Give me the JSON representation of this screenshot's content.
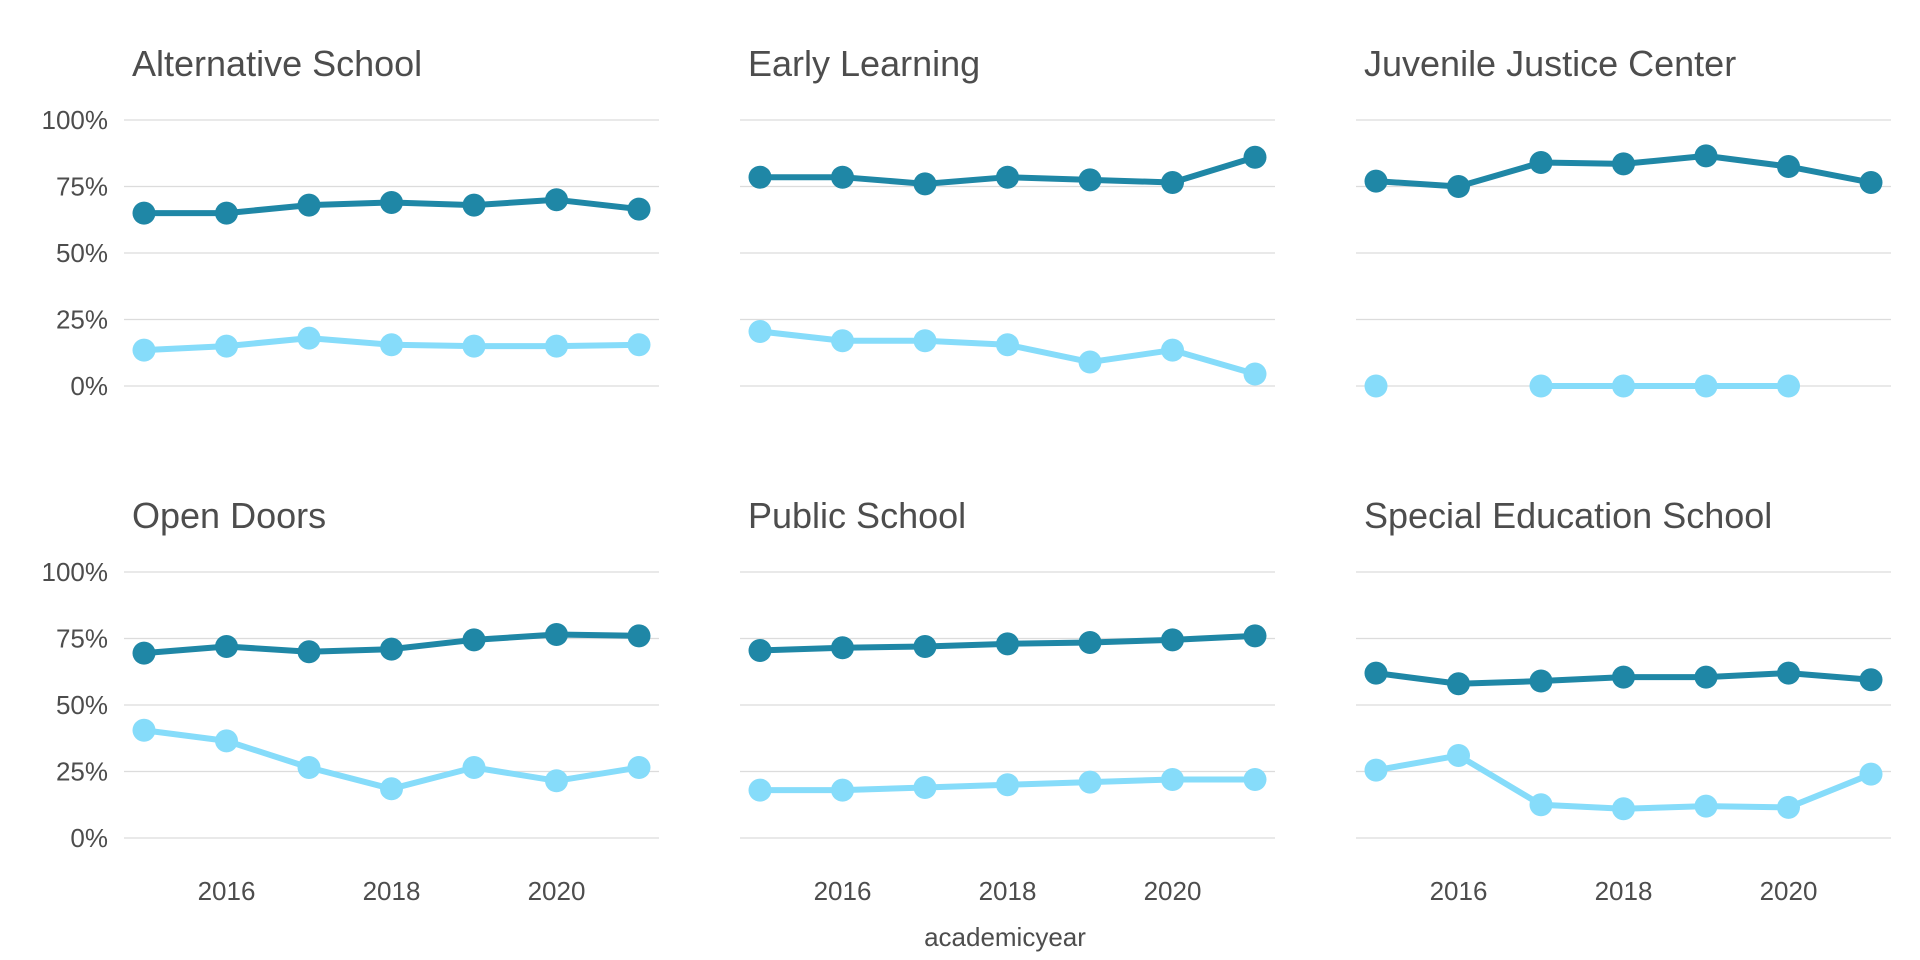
{
  "chart_data": {
    "type": "line",
    "xlabel": "academicyear",
    "ylabel": "",
    "xlim": [
      2015,
      2021
    ],
    "ylim": [
      0,
      1
    ],
    "x_ticks": [
      2016,
      2018,
      2020
    ],
    "x_tick_labels": [
      "2016",
      "2018",
      "2020"
    ],
    "y_ticks": [
      0,
      0.25,
      0.5,
      0.75,
      1.0
    ],
    "y_tick_labels": [
      "0%",
      "25%",
      "50%",
      "75%",
      "100%"
    ],
    "grid": true,
    "legend": "none",
    "series_colors": [
      "#1f87a6",
      "#86dcfa"
    ],
    "x": [
      2015,
      2016,
      2017,
      2018,
      2019,
      2020,
      2021
    ],
    "panels": [
      {
        "title": "Alternative School",
        "series": [
          {
            "values": [
              0.65,
              0.65,
              0.68,
              0.69,
              0.68,
              0.7,
              0.665
            ]
          },
          {
            "values": [
              0.135,
              0.15,
              0.18,
              0.155,
              0.15,
              0.15,
              0.155
            ]
          }
        ]
      },
      {
        "title": "Early Learning",
        "series": [
          {
            "values": [
              0.785,
              0.785,
              0.76,
              0.785,
              0.775,
              0.765,
              0.86
            ]
          },
          {
            "values": [
              0.205,
              0.17,
              0.17,
              0.155,
              0.09,
              0.135,
              0.045
            ]
          }
        ]
      },
      {
        "title": "Juvenile Justice Center",
        "series": [
          {
            "values": [
              0.77,
              0.75,
              0.84,
              0.835,
              0.865,
              0.825,
              0.765
            ]
          },
          {
            "values": [
              0.0,
              null,
              0.0,
              0.0,
              0.0,
              0.0,
              null
            ]
          }
        ]
      },
      {
        "title": "Open Doors",
        "series": [
          {
            "values": [
              0.695,
              0.72,
              0.7,
              0.71,
              0.745,
              0.765,
              0.76
            ]
          },
          {
            "values": [
              0.405,
              0.365,
              0.265,
              0.185,
              0.265,
              0.215,
              0.265
            ]
          }
        ]
      },
      {
        "title": "Public School",
        "series": [
          {
            "values": [
              0.705,
              0.715,
              0.72,
              0.73,
              0.735,
              0.745,
              0.76
            ]
          },
          {
            "values": [
              0.18,
              0.18,
              0.19,
              0.2,
              0.21,
              0.22,
              0.22
            ]
          }
        ]
      },
      {
        "title": "Special Education School",
        "series": [
          {
            "values": [
              0.62,
              0.58,
              0.59,
              0.605,
              0.605,
              0.62,
              0.595
            ]
          },
          {
            "values": [
              0.255,
              0.31,
              0.125,
              0.11,
              0.12,
              0.115,
              0.24
            ]
          }
        ]
      }
    ]
  }
}
